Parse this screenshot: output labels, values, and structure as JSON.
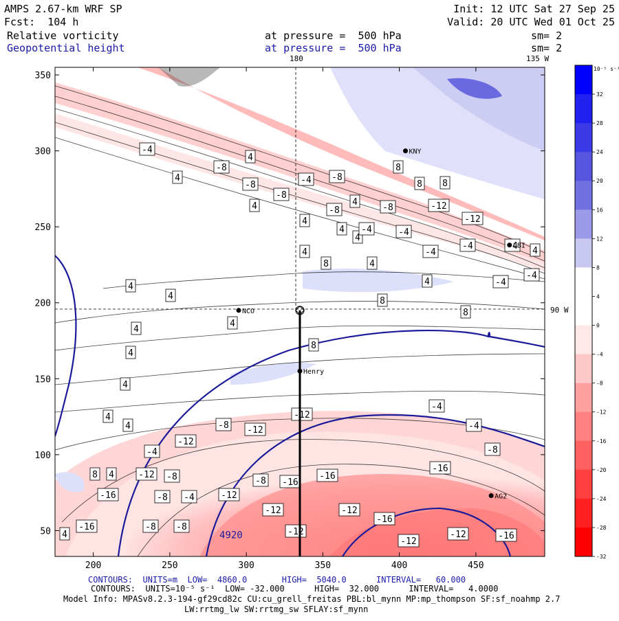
{
  "header": {
    "title": "AMPS 2.67-km WRF SP",
    "fcst": "Fcst:  104 h",
    "init": "Init: 12 UTC Sat 27 Sep 25",
    "valid": "Valid: 20 UTC Wed 01 Oct 25",
    "field1": "Relative vorticity",
    "field1_level": "at pressure =  500 hPa",
    "field1_sm": "sm= 2",
    "field2": "Geopotential height",
    "field2_level": "at pressure =  500 hPa",
    "field2_sm": "sm= 2"
  },
  "map_labels": {
    "lon_180": "180",
    "lon_135w": "135 W",
    "lon_90w": "90 W"
  },
  "stations": [
    {
      "name": "NCO",
      "x": 295,
      "y": 195
    },
    {
      "name": "Henry",
      "x": 335,
      "y": 155
    },
    {
      "name": "AG2",
      "x": 460,
      "y": 73
    },
    {
      "name": "LBI",
      "x": 472,
      "y": 238
    },
    {
      "name": "KNY",
      "x": 404,
      "y": 300
    }
  ],
  "colorbar": {
    "unit": "10⁻⁵ s⁻¹",
    "labels": [
      "32",
      "28",
      "24",
      "20",
      "16",
      "12",
      "8",
      "4",
      "0",
      "-4",
      "-8",
      "-12",
      "-16",
      "-20",
      "-24",
      "-28",
      "-32"
    ],
    "colors": [
      "#0000ff",
      "#2020f0",
      "#3a3ae8",
      "#5555e0",
      "#7070e0",
      "#9a9ae8",
      "#c8c8f0",
      "#ffffff",
      "#ffffff",
      "#ffe8e8",
      "#ffc8c8",
      "#ffa0a0",
      "#ff8080",
      "#ff6060",
      "#ff4040",
      "#ff2020",
      "#ff0000"
    ]
  },
  "footer": {
    "line1": "CONTOURS:  UNITS=m  LOW=  4860.0       HIGH=  5040.0      INTERVAL=   60.000",
    "line2": "CONTOURS:  UNITS=10⁻⁵ s⁻¹  LOW= -32.000      HIGH=  32.000      INTERVAL=   4.0000",
    "line3": "Model Info: MPASv8.2.3-194-gf29cd82c CU:cu_grell_freitas PBL:bl_mynn MP:mp_thompson SF:sf_noahmp 2.7",
    "line4": "LW:rrtmg_lw SW:rrtmg_sw SFLAY:sf_mynn"
  },
  "chart_data": {
    "type": "heatmap",
    "title": "Relative vorticity / Geopotential height at 500 hPa",
    "xlim": [
      175,
      495
    ],
    "ylim": [
      33,
      355
    ],
    "x_ticks": [
      200,
      250,
      300,
      350,
      400,
      450
    ],
    "y_ticks": [
      50,
      100,
      150,
      200,
      250,
      300,
      350
    ],
    "crosshair": {
      "x": 335,
      "y": 195
    },
    "section_line": {
      "x": 335,
      "y_from": 33,
      "y_to": 195
    },
    "height_contour_label": {
      "text": "4920",
      "x": 290,
      "y": 45
    },
    "vorticity_labels": [
      {
        "t": "4",
        "x": 497,
        "y": 333
      },
      {
        "t": "4",
        "x": 520,
        "y": 345
      },
      {
        "t": "-4",
        "x": 214,
        "y": 217
      },
      {
        "t": "4",
        "x": 364,
        "y": 228
      },
      {
        "t": "-8",
        "x": 322,
        "y": 243
      },
      {
        "t": "4",
        "x": 258,
        "y": 258
      },
      {
        "t": "-8",
        "x": 364,
        "y": 268
      },
      {
        "t": "-8",
        "x": 409,
        "y": 283
      },
      {
        "t": "4",
        "x": 370,
        "y": 299
      },
      {
        "t": "-4",
        "x": 445,
        "y": 261
      },
      {
        "t": "-8",
        "x": 490,
        "y": 257
      },
      {
        "t": "-8",
        "x": 486,
        "y": 305
      },
      {
        "t": "4",
        "x": 516,
        "y": 293
      },
      {
        "t": "-8",
        "x": 564,
        "y": 301
      },
      {
        "t": "8",
        "x": 579,
        "y": 243
      },
      {
        "t": "8",
        "x": 610,
        "y": 267
      },
      {
        "t": "8",
        "x": 647,
        "y": 266
      },
      {
        "t": "-12",
        "x": 638,
        "y": 299
      },
      {
        "t": "-12",
        "x": 687,
        "y": 318
      },
      {
        "t": "4",
        "x": 443,
        "y": 321
      },
      {
        "t": "-4",
        "x": 533,
        "y": 333
      },
      {
        "t": "-4",
        "x": 587,
        "y": 337
      },
      {
        "t": "-4",
        "x": 680,
        "y": 357
      },
      {
        "t": "-4",
        "x": 745,
        "y": 357
      },
      {
        "t": "4",
        "x": 778,
        "y": 364
      },
      {
        "t": "4",
        "x": 443,
        "y": 366
      },
      {
        "t": "-4",
        "x": 626,
        "y": 366
      },
      {
        "t": "8",
        "x": 474,
        "y": 383
      },
      {
        "t": "4",
        "x": 541,
        "y": 383
      },
      {
        "t": "-4",
        "x": 728,
        "y": 410
      },
      {
        "t": "-4",
        "x": 773,
        "y": 400
      },
      {
        "t": "4",
        "x": 621,
        "y": 409
      },
      {
        "t": "4",
        "x": 190,
        "y": 416
      },
      {
        "t": "4",
        "x": 248,
        "y": 430
      },
      {
        "t": "8",
        "x": 556,
        "y": 437
      },
      {
        "t": "4",
        "x": 338,
        "y": 470
      },
      {
        "t": "8",
        "x": 677,
        "y": 454
      },
      {
        "t": "4",
        "x": 198,
        "y": 478
      },
      {
        "t": "8",
        "x": 456,
        "y": 502
      },
      {
        "t": "4",
        "x": 190,
        "y": 513
      },
      {
        "t": "4",
        "x": 182,
        "y": 559
      },
      {
        "t": "-12",
        "x": 439,
        "y": 603
      },
      {
        "t": "-4",
        "x": 635,
        "y": 591
      },
      {
        "t": "4",
        "x": 157,
        "y": 606
      },
      {
        "t": "4",
        "x": 186,
        "y": 619
      },
      {
        "t": "-8",
        "x": 325,
        "y": 618
      },
      {
        "t": "-12",
        "x": 371,
        "y": 625
      },
      {
        "t": "-4",
        "x": 689,
        "y": 619
      },
      {
        "t": "-12",
        "x": 270,
        "y": 642
      },
      {
        "t": "-4",
        "x": 221,
        "y": 657
      },
      {
        "t": "-8",
        "x": 716,
        "y": 654
      },
      {
        "t": "8",
        "x": 138,
        "y": 690
      },
      {
        "t": "4",
        "x": 162,
        "y": 690
      },
      {
        "t": "-12",
        "x": 213,
        "y": 690
      },
      {
        "t": "-8",
        "x": 250,
        "y": 693
      },
      {
        "t": "-16",
        "x": 476,
        "y": 692
      },
      {
        "t": "-16",
        "x": 640,
        "y": 681
      },
      {
        "t": "-8",
        "x": 379,
        "y": 699
      },
      {
        "t": "-16",
        "x": 422,
        "y": 701
      },
      {
        "t": "-16",
        "x": 157,
        "y": 720
      },
      {
        "t": "-8",
        "x": 236,
        "y": 723
      },
      {
        "t": "-4",
        "x": 275,
        "y": 723
      },
      {
        "t": "-12",
        "x": 333,
        "y": 720
      },
      {
        "t": "-12",
        "x": 397,
        "y": 742
      },
      {
        "t": "-12",
        "x": 508,
        "y": 742
      },
      {
        "t": "-16",
        "x": 559,
        "y": 755
      },
      {
        "t": "-16",
        "x": 126,
        "y": 766
      },
      {
        "t": "-8",
        "x": 219,
        "y": 766
      },
      {
        "t": "-8",
        "x": 264,
        "y": 766
      },
      {
        "t": "-12",
        "x": 430,
        "y": 773
      },
      {
        "t": "-12",
        "x": 666,
        "y": 777
      },
      {
        "t": "-16",
        "x": 736,
        "y": 779
      },
      {
        "t": "-12",
        "x": 594,
        "y": 787
      },
      {
        "t": "4",
        "x": 94,
        "y": 777
      }
    ]
  }
}
